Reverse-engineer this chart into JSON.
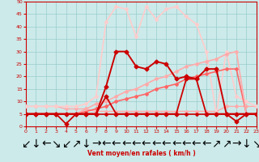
{
  "xlabel": "Vent moyen/en rafales ( km/h )",
  "xlim": [
    0,
    23
  ],
  "ylim": [
    0,
    50
  ],
  "yticks": [
    0,
    5,
    10,
    15,
    20,
    25,
    30,
    35,
    40,
    45,
    50
  ],
  "xticks": [
    0,
    1,
    2,
    3,
    4,
    5,
    6,
    7,
    8,
    9,
    10,
    11,
    12,
    13,
    14,
    15,
    16,
    17,
    18,
    19,
    20,
    21,
    22,
    23
  ],
  "bg_color": "#cceaea",
  "grid_color": "#99cccc",
  "series": [
    {
      "x": [
        0,
        1,
        2,
        3,
        4,
        5,
        6,
        7,
        8,
        9,
        10,
        11,
        12,
        13,
        14,
        15,
        16,
        17,
        18,
        19,
        20,
        21,
        22,
        23
      ],
      "y": [
        5,
        5,
        5,
        5,
        5,
        5,
        5,
        5,
        5,
        5,
        5,
        5,
        5,
        5,
        5,
        5,
        5,
        5,
        5,
        5,
        5,
        5,
        5,
        5
      ],
      "color": "#cc0000",
      "lw": 1.2,
      "marker": "D",
      "ms": 2.0,
      "zorder": 6
    },
    {
      "x": [
        0,
        1,
        2,
        3,
        4,
        5,
        6,
        7,
        8,
        9,
        10,
        11,
        12,
        13,
        14,
        15,
        16,
        17,
        18,
        19,
        20,
        21,
        22,
        23
      ],
      "y": [
        8,
        8,
        8,
        8,
        7,
        7,
        7,
        6,
        6,
        6,
        6,
        6,
        6,
        6,
        6,
        6,
        6,
        6,
        6,
        6,
        8,
        8,
        8,
        8
      ],
      "color": "#ffaaaa",
      "lw": 1.0,
      "marker": "D",
      "ms": 2.0,
      "zorder": 3
    },
    {
      "comment": "dark red line with spike at 4=1, 8=12, 16-17=19, 21=2",
      "x": [
        0,
        1,
        2,
        3,
        4,
        5,
        6,
        7,
        8,
        9,
        10,
        11,
        12,
        13,
        14,
        15,
        16,
        17,
        18,
        19,
        20,
        21,
        22,
        23
      ],
      "y": [
        5,
        5,
        5,
        5,
        1,
        5,
        5,
        5,
        12,
        5,
        5,
        5,
        5,
        5,
        5,
        5,
        19,
        19,
        5,
        5,
        5,
        2,
        5,
        5
      ],
      "color": "#cc0000",
      "lw": 1.3,
      "marker": "D",
      "ms": 2.5,
      "zorder": 7
    },
    {
      "x": [
        0,
        1,
        2,
        3,
        4,
        5,
        6,
        7,
        8,
        9,
        10,
        11,
        12,
        13,
        14,
        15,
        16,
        17,
        18,
        19,
        20,
        21,
        22,
        23
      ],
      "y": [
        5,
        5,
        5,
        5,
        5,
        5,
        5,
        5,
        16,
        30,
        30,
        24,
        23,
        26,
        25,
        19,
        20,
        19,
        23,
        23,
        5,
        5,
        5,
        5
      ],
      "color": "#cc0000",
      "lw": 1.4,
      "marker": "D",
      "ms": 2.5,
      "zorder": 6
    },
    {
      "x": [
        0,
        1,
        2,
        3,
        4,
        5,
        6,
        7,
        8,
        9,
        10,
        11,
        12,
        13,
        14,
        15,
        16,
        17,
        18,
        19,
        20,
        21,
        22,
        23
      ],
      "y": [
        5,
        5,
        5,
        5,
        5,
        5,
        6,
        7,
        8,
        10,
        11,
        12,
        13,
        15,
        16,
        17,
        19,
        20,
        21,
        22,
        23,
        23,
        5,
        5
      ],
      "color": "#ff6666",
      "lw": 1.2,
      "marker": "D",
      "ms": 2.0,
      "zorder": 4
    },
    {
      "x": [
        0,
        1,
        2,
        3,
        4,
        5,
        6,
        7,
        8,
        9,
        10,
        11,
        12,
        13,
        14,
        15,
        16,
        17,
        18,
        19,
        20,
        21,
        22,
        23
      ],
      "y": [
        5,
        5,
        5,
        5,
        5,
        5,
        7,
        9,
        10,
        12,
        14,
        15,
        17,
        19,
        20,
        22,
        24,
        25,
        26,
        27,
        29,
        30,
        5,
        5
      ],
      "color": "#ffaaaa",
      "lw": 1.2,
      "marker": "D",
      "ms": 2.0,
      "zorder": 4
    },
    {
      "x": [
        0,
        1,
        2,
        3,
        4,
        5,
        6,
        7,
        8,
        9,
        10,
        11,
        12,
        13,
        14,
        15,
        16,
        17,
        18,
        19,
        20,
        21,
        22,
        23
      ],
      "y": [
        8,
        8,
        8,
        8,
        8,
        8,
        9,
        12,
        42,
        48,
        47,
        36,
        48,
        43,
        47,
        48,
        44,
        41,
        30,
        5,
        30,
        12,
        10,
        8
      ],
      "color": "#ffcccc",
      "lw": 1.2,
      "marker": "D",
      "ms": 2.0,
      "zorder": 3
    }
  ],
  "wind_dirs": [
    "↙",
    "↓",
    "←",
    "↘",
    "↙",
    "↗",
    "↓",
    "→",
    "←",
    "←",
    "←",
    "←",
    "←",
    "←",
    "←",
    "←",
    "←",
    "←",
    "←",
    "↗",
    "↗",
    "→",
    "↓",
    "↘"
  ]
}
